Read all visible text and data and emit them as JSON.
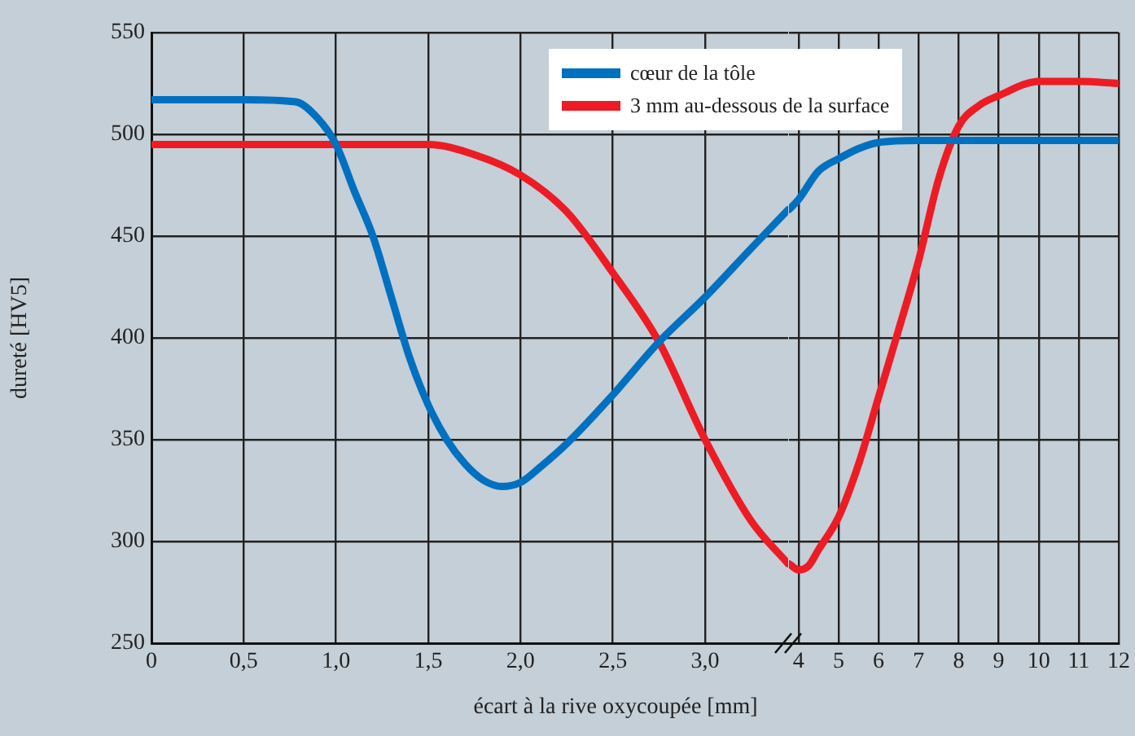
{
  "chart_data": [
    {
      "type": "line",
      "xlabel": "écart à la rive oxycoupée [mm]",
      "ylabel": "dureté [HV5]",
      "xlim": [
        0,
        3.45
      ],
      "ylim": [
        250,
        550
      ],
      "xticks": [
        0,
        {
          "value": 0.5,
          "label": "0,5"
        },
        {
          "value": 1,
          "label": "1,0"
        },
        {
          "value": 1.5,
          "label": "1,5"
        },
        {
          "value": 2,
          "label": "2,0"
        },
        {
          "value": 2.5,
          "label": "2,5"
        },
        {
          "value": 3,
          "label": "3,0"
        }
      ],
      "yticks": [
        250,
        300,
        350,
        400,
        450,
        500,
        550
      ],
      "grid": true,
      "legend": "top",
      "marker": "none",
      "line_style": "solid",
      "series": [
        {
          "name": "cœur de la tôle",
          "color": "#0070c0",
          "x": [
            0,
            0.5,
            0.78,
            0.9,
            1.0,
            1.1,
            1.2,
            1.3,
            1.4,
            1.5,
            1.6,
            1.7,
            1.8,
            1.9,
            2.0,
            2.1,
            2.25,
            2.5,
            2.75,
            3.0,
            3.25,
            3.45
          ],
          "values": [
            517,
            517,
            516,
            508,
            495,
            472,
            450,
            420,
            390,
            367,
            350,
            338,
            330,
            327,
            329,
            336,
            348,
            372,
            398,
            420,
            444,
            463
          ]
        },
        {
          "name": "3 mm au-dessous de la surface",
          "color": "#ed1c24",
          "x": [
            0,
            0.5,
            1.0,
            1.5,
            1.75,
            2.0,
            2.25,
            2.5,
            2.75,
            3.0,
            3.25,
            3.45
          ],
          "values": [
            495,
            495,
            495,
            495,
            490,
            480,
            462,
            432,
            398,
            350,
            310,
            289
          ]
        }
      ]
    },
    {
      "type": "line",
      "xlim": [
        3.76,
        12
      ],
      "ylim": [
        250,
        550
      ],
      "xticks": [
        4,
        5,
        6,
        7,
        8,
        9,
        10,
        11,
        12
      ],
      "yticks": [
        250,
        300,
        350,
        400,
        450,
        500,
        550
      ],
      "tick_labels": "x",
      "grid": true,
      "marker": "none",
      "line_style": "solid",
      "series": [
        {
          "color": "#0070c0",
          "x": [
            3.76,
            4,
            4.5,
            5,
            5.5,
            6,
            7,
            8,
            10,
            12
          ],
          "values": [
            463,
            468,
            482,
            488,
            493,
            496,
            497,
            497,
            497,
            497
          ]
        },
        {
          "color": "#ed1c24",
          "x": [
            3.76,
            4,
            4.25,
            4.5,
            5,
            5.5,
            6,
            6.5,
            7,
            7.5,
            8,
            8.5,
            9,
            10,
            11,
            12
          ],
          "values": [
            289,
            286,
            288,
            296,
            312,
            338,
            371,
            404,
            438,
            478,
            504,
            514,
            519,
            526,
            526,
            525
          ]
        }
      ]
    }
  ]
}
